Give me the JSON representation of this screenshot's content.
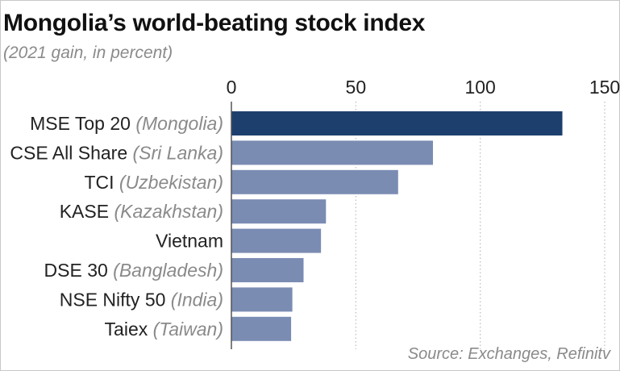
{
  "title": "Mongolia’s world-beating stock index",
  "subtitle": "(2021 gain, in percent)",
  "source": "Source: Exchanges, Refinitv",
  "colors": {
    "highlight": "#1d3f6e",
    "bar": "#7b8cb3",
    "grid": "#bbbbbb",
    "axis": "#555555"
  },
  "chart_data": {
    "type": "bar",
    "orientation": "horizontal",
    "categories": [
      {
        "name": "MSE Top 20",
        "country": "(Mongolia)"
      },
      {
        "name": "CSE All Share",
        "country": "(Sri Lanka)"
      },
      {
        "name": "TCI",
        "country": "(Uzbekistan)"
      },
      {
        "name": "KASE",
        "country": "(Kazakhstan)"
      },
      {
        "name": "Vietnam",
        "country": ""
      },
      {
        "name": "DSE 30",
        "country": "(Bangladesh)"
      },
      {
        "name": "NSE Nifty 50",
        "country": "(India)"
      },
      {
        "name": "Taiex",
        "country": "(Taiwan)"
      }
    ],
    "values": [
      133,
      81,
      67,
      38,
      36,
      29,
      24.5,
      24
    ],
    "highlight_index": 0,
    "xlim": [
      0,
      150
    ],
    "xticks": [
      0,
      50,
      100,
      150
    ],
    "grid": "vertical dotted",
    "xlabel": "",
    "ylabel": ""
  }
}
